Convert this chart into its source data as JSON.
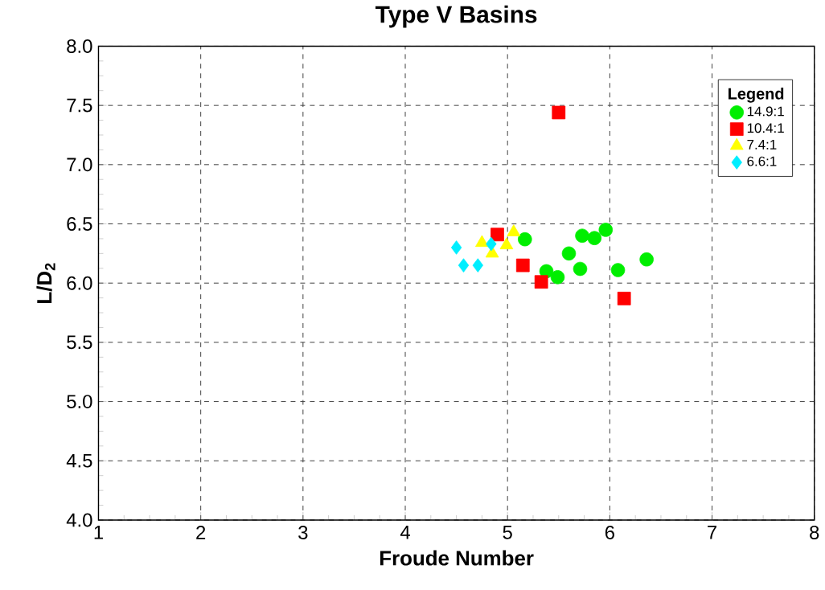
{
  "chart_data": {
    "type": "scatter",
    "title": "Type V Basins",
    "xlabel": "Froude Number",
    "ylabel": "L/D$_{2}$",
    "legend_title": "Legend",
    "legend": "top right",
    "grid": true,
    "xlim": [
      1,
      8
    ],
    "ylim": [
      4.0,
      8.0
    ],
    "xticks": [
      1,
      2,
      3,
      4,
      5,
      6,
      7,
      8
    ],
    "yticks": [
      {
        "value": 4.0,
        "label": "4.0"
      },
      {
        "value": 4.5,
        "label": "4.5"
      },
      {
        "value": 5.0,
        "label": "5.0"
      },
      {
        "value": 5.5,
        "label": "5.5"
      },
      {
        "value": 6.0,
        "label": "6.0"
      },
      {
        "value": 6.5,
        "label": "6.5"
      },
      {
        "value": 7.0,
        "label": "7.0"
      },
      {
        "value": 7.5,
        "label": "7.5"
      },
      {
        "value": 8.0,
        "label": "8.0"
      }
    ],
    "series": [
      {
        "name": "14.9:1",
        "color": "#00ee00",
        "marker": "circle",
        "x": [
          5.17,
          5.38,
          5.49,
          5.6,
          5.73,
          5.71,
          5.85,
          5.96,
          6.08,
          6.36
        ],
        "values": [
          6.37,
          6.1,
          6.05,
          6.25,
          6.4,
          6.12,
          6.38,
          6.45,
          6.11,
          6.2
        ]
      },
      {
        "name": "10.4:1",
        "color": "#ff0000",
        "marker": "square",
        "x": [
          4.9,
          5.5,
          5.15,
          5.33,
          6.14
        ],
        "values": [
          6.41,
          7.44,
          6.15,
          6.01,
          5.87
        ]
      },
      {
        "name": "7.4:1",
        "color": "#ffff00",
        "marker": "triangle",
        "x": [
          4.75,
          5.06,
          4.85,
          4.99
        ],
        "values": [
          6.34,
          6.43,
          6.25,
          6.32
        ]
      },
      {
        "name": "6.6:1",
        "color": "#00eeff",
        "marker": "diamond",
        "x": [
          4.5,
          4.57,
          4.71,
          4.84
        ],
        "values": [
          6.3,
          6.15,
          6.15,
          6.33
        ]
      }
    ]
  }
}
